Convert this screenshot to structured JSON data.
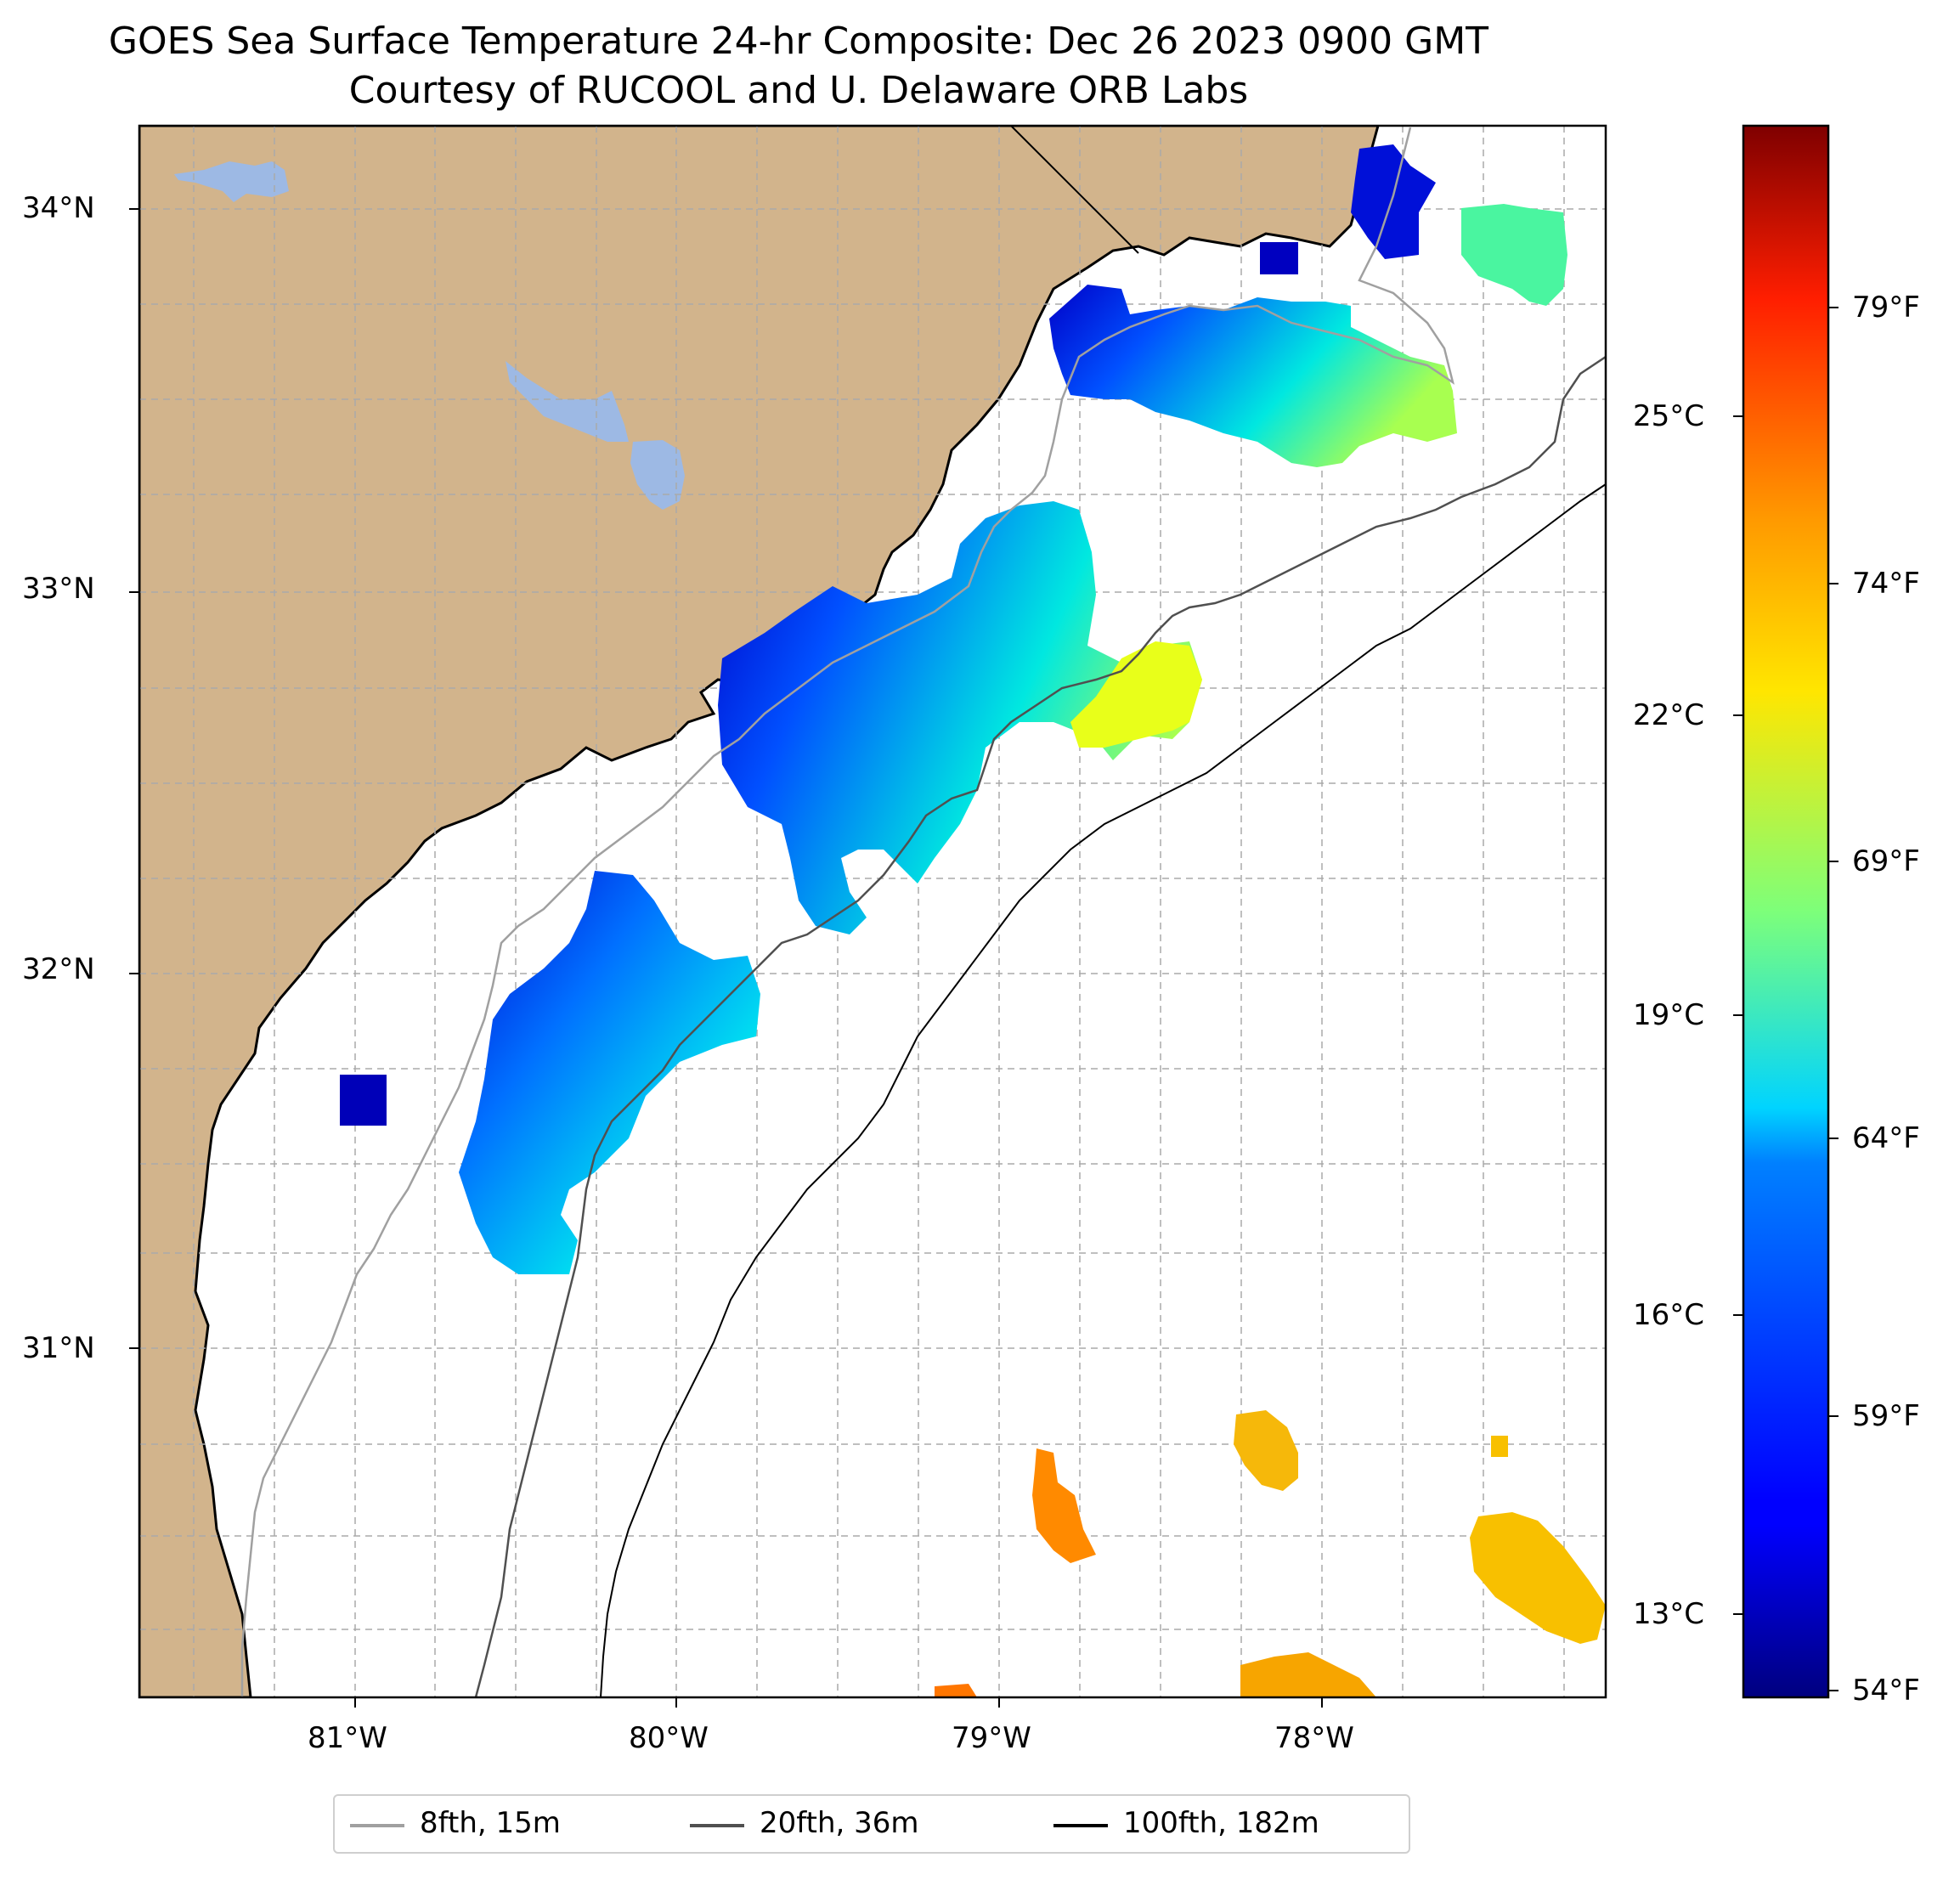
{
  "title": "GOES Sea Surface Temperature 24-hr Composite: Dec 26 2023 0900 GMT",
  "subtitle": "Courtesy of RUCOOL and U. Delaware ORB Labs",
  "map": {
    "lon_range": [
      -81.67,
      -77.13
    ],
    "lat_range": [
      30.07,
      34.22
    ],
    "lat_ticks": [
      {
        "value": 34,
        "label": "34°N"
      },
      {
        "value": 33,
        "label": "33°N"
      },
      {
        "value": 32,
        "label": "32°N"
      },
      {
        "value": 31,
        "label": "31°N"
      }
    ],
    "lon_ticks": [
      {
        "value": -81,
        "label": "81°W"
      },
      {
        "value": -80,
        "label": "80°W"
      },
      {
        "value": -79,
        "label": "79°W"
      },
      {
        "value": -78,
        "label": "78°W"
      }
    ],
    "land_color": "#d2b48c",
    "lake_color": "#9db9e4",
    "gridlines": "dashed"
  },
  "colorbar": {
    "colormap": "jet",
    "range_f": [
      53.6,
      82.4
    ],
    "celsius_ticks": [
      "25°C",
      "22°C",
      "19°C",
      "16°C",
      "13°C"
    ],
    "fahrenheit_ticks": [
      "79°F",
      "74°F",
      "69°F",
      "64°F",
      "59°F",
      "54°F"
    ]
  },
  "legend": {
    "entries": [
      {
        "label": "8fth, 15m",
        "color": "#a0a0a0"
      },
      {
        "label": "20fth, 36m",
        "color": "#505050"
      },
      {
        "label": "100fth, 182m",
        "color": "#000000"
      }
    ]
  },
  "sst_patches": [
    {
      "name": "grays-reef-coldspot",
      "lon": -80.97,
      "lat": 31.65,
      "temp_f": 55
    },
    {
      "name": "ga-shelf-patch",
      "lon": -80.3,
      "lat": 31.75,
      "temp_f": 62
    },
    {
      "name": "sc-shelf-patch",
      "lon": -79.3,
      "lat": 32.7,
      "temp_f": 63
    },
    {
      "name": "nc-long-bay-patch",
      "lon": -78.2,
      "lat": 33.55,
      "temp_f": 62
    },
    {
      "name": "cape-fear-coldspot",
      "lon": -77.95,
      "lat": 34.0,
      "temp_f": 55
    },
    {
      "name": "offshore-nc-patch",
      "lon": -77.4,
      "lat": 33.9,
      "temp_f": 67
    },
    {
      "name": "gulf-stream-edge-patch",
      "lon": -78.6,
      "lat": 32.75,
      "temp_f": 71
    },
    {
      "name": "gulf-stream-warm-1",
      "lon": -78.2,
      "lat": 30.7,
      "temp_f": 75
    },
    {
      "name": "gulf-stream-warm-2",
      "lon": -78.8,
      "lat": 30.55,
      "temp_f": 77
    },
    {
      "name": "gulf-stream-warm-3",
      "lon": -77.45,
      "lat": 30.4,
      "temp_f": 75
    },
    {
      "name": "gulf-stream-warm-4",
      "lon": -78.0,
      "lat": 30.1,
      "temp_f": 76
    },
    {
      "name": "gulf-stream-warm-5",
      "lon": -79.2,
      "lat": 30.09,
      "temp_f": 78
    }
  ]
}
